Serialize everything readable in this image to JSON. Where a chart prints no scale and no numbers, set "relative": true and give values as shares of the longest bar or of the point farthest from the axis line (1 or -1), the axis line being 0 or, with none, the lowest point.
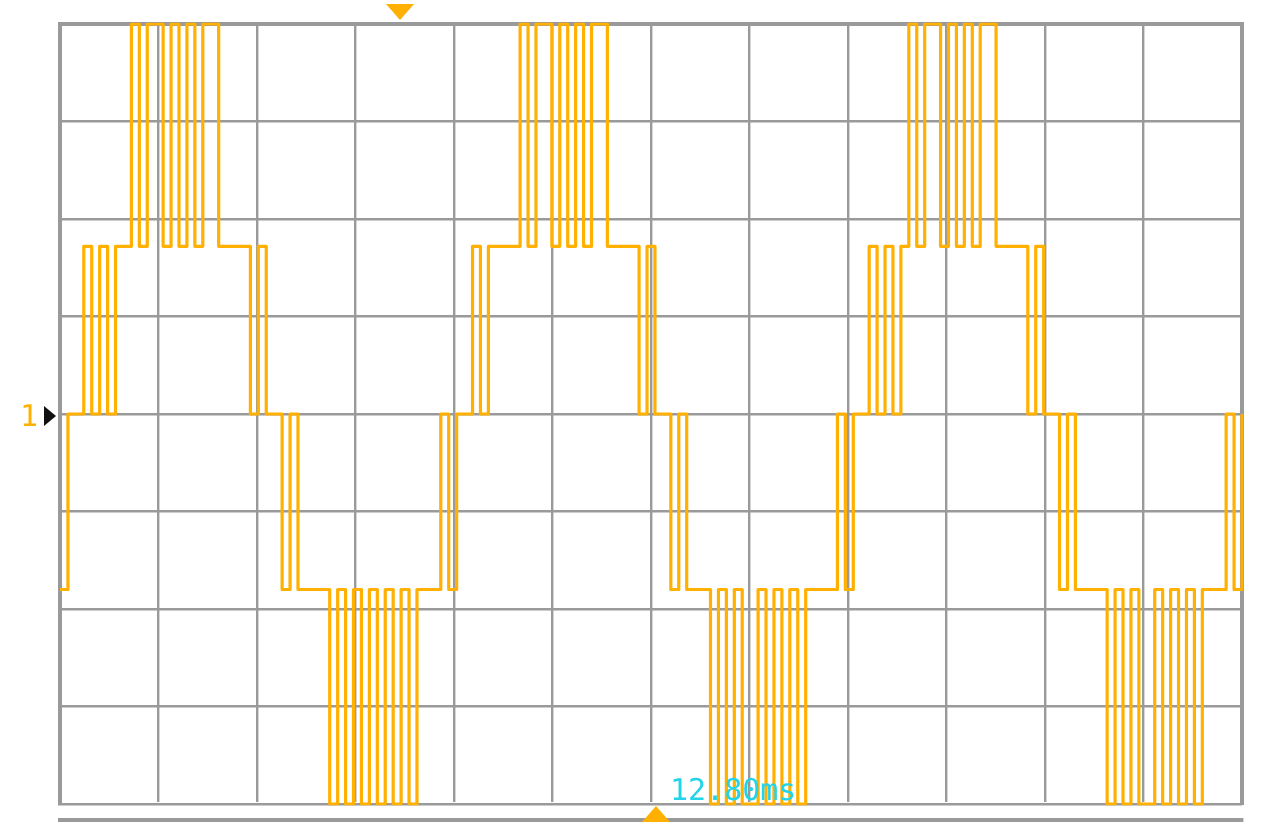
{
  "chart_data": {
    "type": "step",
    "relative": true,
    "grid": true,
    "annotations": [
      "12.80ms",
      "1"
    ],
    "categories": [
      null,
      null,
      null,
      null,
      null,
      null,
      null,
      null,
      null,
      null,
      null,
      null,
      null,
      null,
      null,
      null,
      null,
      null,
      null,
      null,
      null,
      null,
      null,
      null,
      null,
      null,
      null,
      null,
      null,
      null,
      null,
      null,
      null,
      null,
      null,
      null,
      null,
      null,
      null,
      null,
      null,
      null,
      null,
      null,
      null,
      null,
      null,
      null,
      null,
      null,
      null,
      null,
      null,
      null,
      null,
      null,
      null,
      null,
      null,
      null,
      null,
      null,
      null,
      null,
      null,
      null,
      null,
      null,
      null,
      null,
      null,
      null,
      null,
      null,
      null,
      null,
      null,
      null,
      null,
      null,
      null,
      null,
      null,
      null,
      null,
      null,
      null,
      null,
      null,
      null,
      null,
      null,
      null,
      null,
      null,
      null,
      null,
      null,
      null,
      null,
      null,
      null,
      null,
      null,
      null,
      null,
      null,
      null,
      null,
      null,
      null,
      null,
      null,
      null,
      null,
      null,
      null,
      null,
      null,
      null,
      null,
      null,
      null,
      null,
      null,
      null,
      null,
      null,
      null,
      null,
      null,
      null,
      null,
      null,
      null,
      null,
      null,
      null,
      null,
      null,
      null,
      null,
      null,
      null,
      null,
      null,
      null,
      null,
      null,
      null
    ],
    "series": [
      {
        "color": "#ffb000",
        "values": [
          -0.45,
          0,
          0,
          0.43,
          0,
          0.43,
          0,
          0.43,
          0.43,
          1,
          0.43,
          1,
          1,
          0.43,
          1,
          0.43,
          1,
          0.43,
          1,
          1,
          0.43,
          0.43,
          0.43,
          0.43,
          0,
          0.43,
          0,
          0,
          -0.45,
          0,
          -0.45,
          -0.45,
          -0.45,
          -0.45,
          -1,
          -0.45,
          -1,
          -0.45,
          -1,
          -0.45,
          -1,
          -0.45,
          -1,
          -0.45,
          -1,
          -0.45,
          -0.45,
          -0.45,
          0,
          -0.45,
          0,
          0,
          0.43,
          0,
          0.43,
          0.43,
          0.43,
          0.43,
          1,
          0.43,
          1,
          1,
          0.43,
          1,
          0.43,
          1,
          0.43,
          1,
          1,
          0.43,
          0.43,
          0.43,
          0.43,
          0,
          0.43,
          0,
          0,
          -0.45,
          0,
          -0.45,
          -0.45,
          -0.45,
          -1,
          -0.45,
          -1,
          -0.45,
          -1,
          -1,
          -0.45,
          -1,
          -0.45,
          -1,
          -0.45,
          -1,
          -0.45,
          -0.45,
          -0.45,
          -0.45,
          0,
          -0.45,
          0,
          0,
          0.43,
          0,
          0.43,
          0,
          0.43,
          1,
          0.43,
          1,
          1,
          0.43,
          1,
          0.43,
          1,
          0.43,
          1,
          1,
          0.43,
          0.43,
          0.43,
          0.43,
          0,
          0.43,
          0,
          0,
          -0.45,
          0,
          -0.45,
          -0.45,
          -0.45,
          -0.45,
          -1,
          -0.45,
          -1,
          -0.45,
          -1,
          -1,
          -0.45,
          -1,
          -0.45,
          -1,
          -0.45,
          -1,
          -0.45,
          -0.45,
          -0.45,
          0,
          -0.45,
          0
        ]
      }
    ]
  }
}
